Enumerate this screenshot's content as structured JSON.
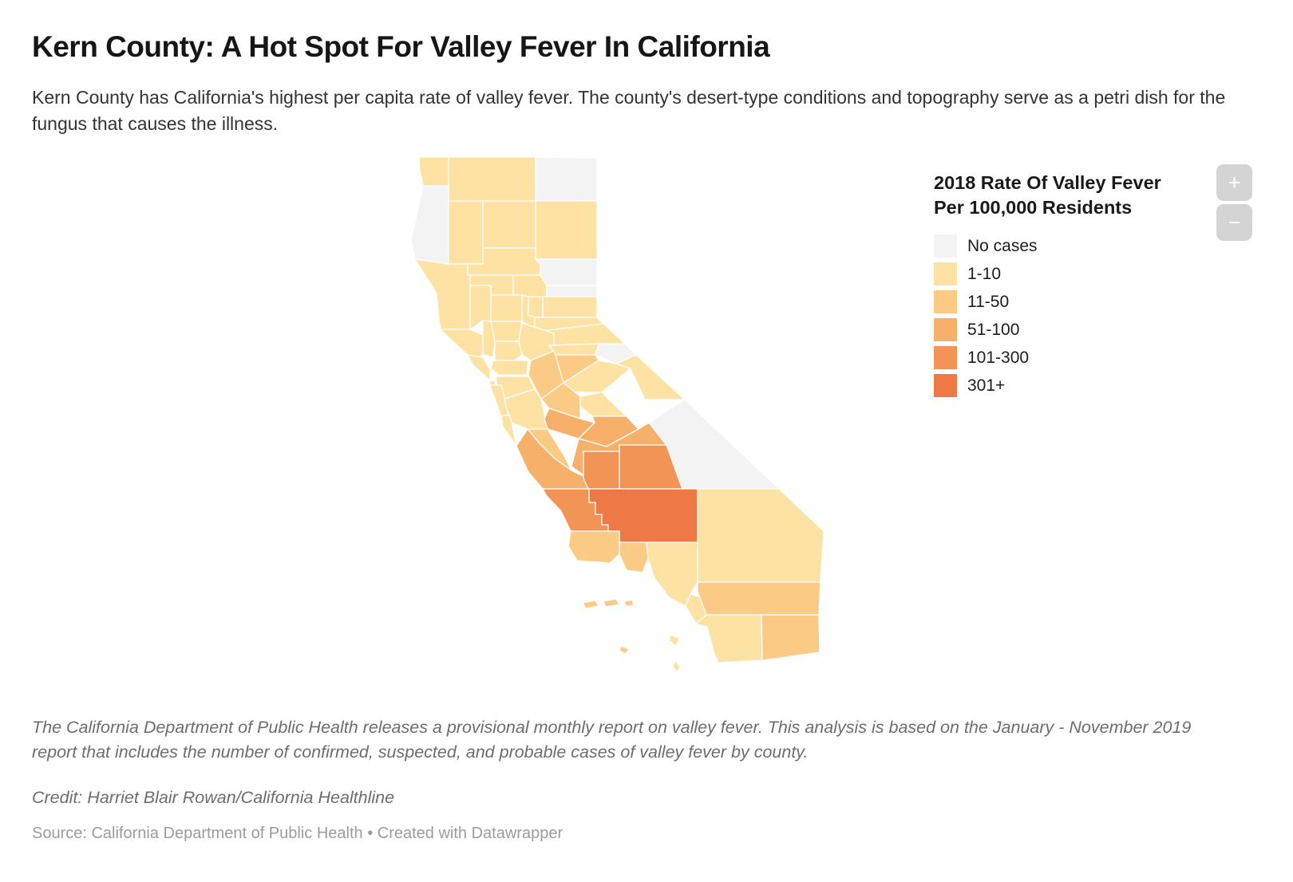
{
  "header": {
    "title": "Kern County: A Hot Spot For Valley Fever In California",
    "subtitle": "Kern County has California's highest per capita rate of valley fever. The county's desert-type conditions and topography serve as a petri dish for the fungus that causes the illness."
  },
  "legend": {
    "title_line1": "2018 Rate Of Valley Fever",
    "title_line2": "Per 100,000 Residents",
    "items": [
      {
        "label": "No cases",
        "color": "#f3f3f3"
      },
      {
        "label": "1-10",
        "color": "#fde2a3"
      },
      {
        "label": "11-50",
        "color": "#fbca84"
      },
      {
        "label": "51-100",
        "color": "#f7b069"
      },
      {
        "label": "101-300",
        "color": "#f29456"
      },
      {
        "label": "301+",
        "color": "#ee7944"
      }
    ]
  },
  "map_controls": {
    "zoom_in": "+",
    "zoom_out": "−"
  },
  "map": {
    "counties": [
      {
        "id": "del_norte",
        "name": "Del Norte",
        "category": "1-10"
      },
      {
        "id": "siskiyou",
        "name": "Siskiyou",
        "category": "1-10"
      },
      {
        "id": "modoc",
        "name": "Modoc",
        "category": "No cases"
      },
      {
        "id": "humboldt",
        "name": "Humboldt",
        "category": "No cases"
      },
      {
        "id": "trinity",
        "name": "Trinity",
        "category": "1-10"
      },
      {
        "id": "shasta",
        "name": "Shasta",
        "category": "1-10"
      },
      {
        "id": "lassen",
        "name": "Lassen",
        "category": "1-10"
      },
      {
        "id": "tehama",
        "name": "Tehama",
        "category": "1-10"
      },
      {
        "id": "plumas",
        "name": "Plumas",
        "category": "No cases"
      },
      {
        "id": "mendocino",
        "name": "Mendocino",
        "category": "1-10"
      },
      {
        "id": "glenn",
        "name": "Glenn",
        "category": "1-10"
      },
      {
        "id": "butte",
        "name": "Butte",
        "category": "1-10"
      },
      {
        "id": "sierra",
        "name": "Sierra",
        "category": "No cases"
      },
      {
        "id": "nevada",
        "name": "Nevada",
        "category": "1-10"
      },
      {
        "id": "yuba",
        "name": "Yuba",
        "category": "1-10"
      },
      {
        "id": "colusa",
        "name": "Colusa",
        "category": "1-10"
      },
      {
        "id": "sutter",
        "name": "Sutter",
        "category": "1-10"
      },
      {
        "id": "lake",
        "name": "Lake",
        "category": "1-10"
      },
      {
        "id": "placer",
        "name": "Placer",
        "category": "1-10"
      },
      {
        "id": "el_dorado",
        "name": "El Dorado",
        "category": "1-10"
      },
      {
        "id": "yolo",
        "name": "Yolo",
        "category": "1-10"
      },
      {
        "id": "napa",
        "name": "Napa",
        "category": "1-10"
      },
      {
        "id": "sonoma",
        "name": "Sonoma",
        "category": "1-10"
      },
      {
        "id": "sacramento",
        "name": "Sacramento",
        "category": "1-10"
      },
      {
        "id": "solano",
        "name": "Solano",
        "category": "1-10"
      },
      {
        "id": "amador",
        "name": "Amador",
        "category": "1-10"
      },
      {
        "id": "alpine",
        "name": "Alpine",
        "category": "No cases"
      },
      {
        "id": "marin",
        "name": "Marin",
        "category": "1-10"
      },
      {
        "id": "contra_costa",
        "name": "Contra Costa",
        "category": "1-10"
      },
      {
        "id": "san_francisco",
        "name": "San Francisco",
        "category": "1-10"
      },
      {
        "id": "alameda",
        "name": "Alameda",
        "category": "1-10"
      },
      {
        "id": "san_mateo",
        "name": "San Mateo",
        "category": "1-10"
      },
      {
        "id": "santa_clara",
        "name": "Santa Clara",
        "category": "1-10"
      },
      {
        "id": "santa_cruz",
        "name": "Santa Cruz",
        "category": "1-10"
      },
      {
        "id": "san_joaquin",
        "name": "San Joaquin",
        "category": "11-50"
      },
      {
        "id": "calaveras",
        "name": "Calaveras",
        "category": "11-50"
      },
      {
        "id": "tuolumne",
        "name": "Tuolumne",
        "category": "1-10"
      },
      {
        "id": "mono",
        "name": "Mono",
        "category": "1-10"
      },
      {
        "id": "stanislaus",
        "name": "Stanislaus",
        "category": "11-50"
      },
      {
        "id": "mariposa",
        "name": "Mariposa",
        "category": "1-10"
      },
      {
        "id": "merced",
        "name": "Merced",
        "category": "51-100"
      },
      {
        "id": "madera",
        "name": "Madera",
        "category": "51-100"
      },
      {
        "id": "fresno",
        "name": "Fresno",
        "category": "51-100"
      },
      {
        "id": "san_benito",
        "name": "San Benito",
        "category": "11-50"
      },
      {
        "id": "monterey",
        "name": "Monterey",
        "category": "51-100"
      },
      {
        "id": "kings",
        "name": "Kings",
        "category": "101-300"
      },
      {
        "id": "tulare",
        "name": "Tulare",
        "category": "101-300"
      },
      {
        "id": "inyo",
        "name": "Inyo",
        "category": "No cases"
      },
      {
        "id": "san_luis_obispo",
        "name": "San Luis Obispo",
        "category": "101-300"
      },
      {
        "id": "kern",
        "name": "Kern",
        "category": "301+"
      },
      {
        "id": "santa_barbara",
        "name": "Santa Barbara",
        "category": "11-50"
      },
      {
        "id": "ventura",
        "name": "Ventura",
        "category": "11-50"
      },
      {
        "id": "los_angeles",
        "name": "Los Angeles",
        "category": "1-10"
      },
      {
        "id": "san_bernardino",
        "name": "San Bernardino",
        "category": "1-10"
      },
      {
        "id": "orange",
        "name": "Orange",
        "category": "1-10"
      },
      {
        "id": "riverside",
        "name": "Riverside",
        "category": "11-50"
      },
      {
        "id": "san_diego",
        "name": "San Diego",
        "category": "1-10"
      },
      {
        "id": "imperial",
        "name": "Imperial",
        "category": "11-50"
      }
    ]
  },
  "footer": {
    "note": "The California Department of Public Health releases a provisional monthly report on valley fever. This analysis is based on the January - November 2019 report that includes the number of confirmed, suspected, and probable cases of valley fever by county.",
    "credit": "Credit: Harriet Blair Rowan/California Healthline",
    "source": "Source: California Department of Public Health • Created with Datawrapper"
  }
}
